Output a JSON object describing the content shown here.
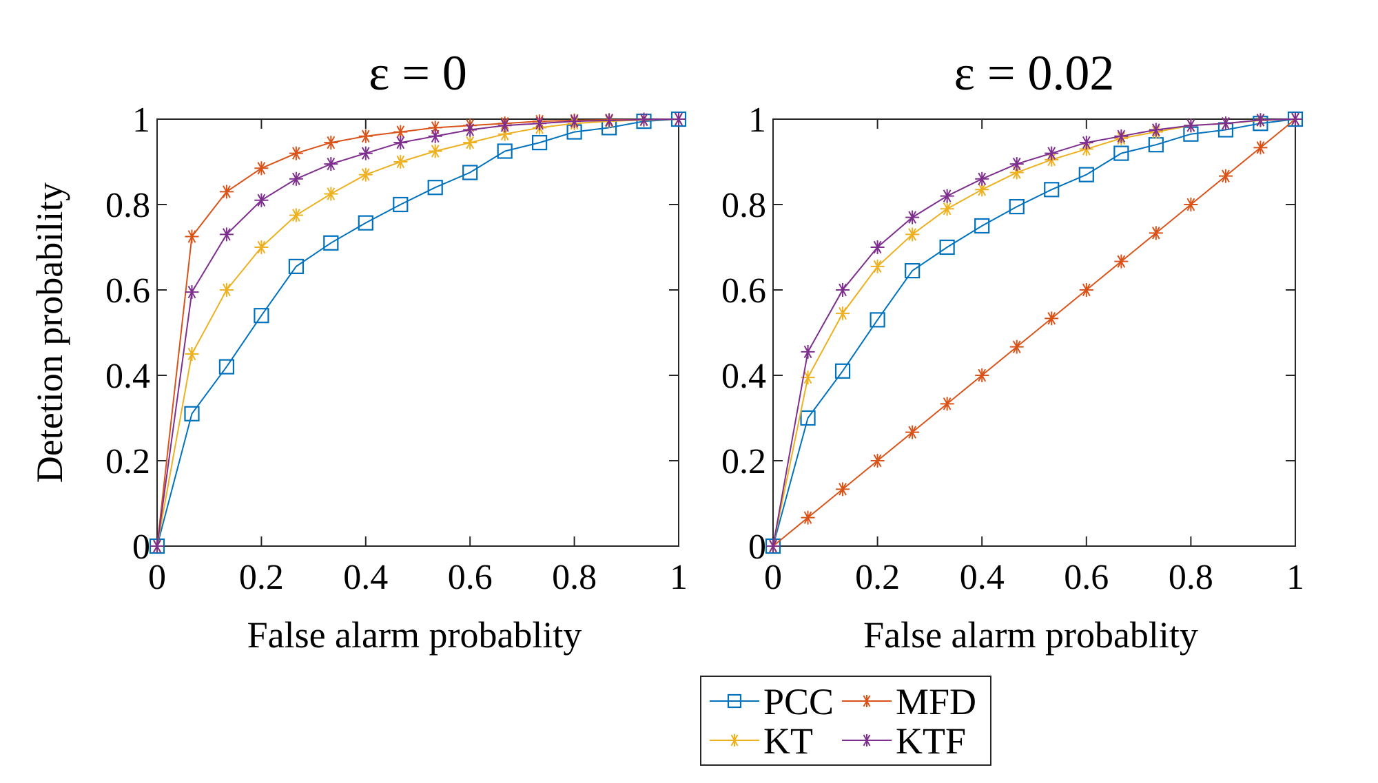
{
  "chart_data": [
    {
      "type": "line",
      "title": "ε = 0",
      "xlabel": "False alarm probablity",
      "ylabel": "Detetion probability",
      "xlim": [
        0,
        1
      ],
      "ylim": [
        0,
        1
      ],
      "xticks": [
        "0",
        "0.2",
        "0.4",
        "0.6",
        "0.8",
        "1"
      ],
      "yticks": [
        "0",
        "0.2",
        "0.4",
        "0.6",
        "0.8",
        "1"
      ],
      "grid": false,
      "x": [
        0,
        0.0667,
        0.1333,
        0.2,
        0.2667,
        0.3333,
        0.4,
        0.4667,
        0.5333,
        0.6,
        0.6667,
        0.7333,
        0.8,
        0.8667,
        0.9333,
        1
      ],
      "series": [
        {
          "name": "PCC",
          "marker": "square",
          "color": "#0072BD",
          "values": [
            0,
            0.31,
            0.42,
            0.54,
            0.655,
            0.71,
            0.757,
            0.8,
            0.84,
            0.875,
            0.925,
            0.945,
            0.97,
            0.98,
            0.995,
            1
          ]
        },
        {
          "name": "MFD",
          "marker": "asterisk",
          "color": "#D95319",
          "values": [
            0,
            0.725,
            0.83,
            0.885,
            0.92,
            0.945,
            0.96,
            0.97,
            0.98,
            0.985,
            0.99,
            0.995,
            0.997,
            0.998,
            0.999,
            1
          ]
        },
        {
          "name": "KT",
          "marker": "asterisk",
          "color": "#EDB120",
          "values": [
            0,
            0.45,
            0.6,
            0.7,
            0.775,
            0.825,
            0.87,
            0.9,
            0.925,
            0.945,
            0.965,
            0.98,
            0.99,
            0.995,
            0.998,
            1
          ]
        },
        {
          "name": "KTF",
          "marker": "asterisk",
          "color": "#7E2F8E",
          "values": [
            0,
            0.595,
            0.73,
            0.81,
            0.86,
            0.895,
            0.92,
            0.945,
            0.96,
            0.975,
            0.985,
            0.99,
            0.995,
            0.997,
            0.999,
            1
          ]
        }
      ]
    },
    {
      "type": "line",
      "title": "ε = 0.02",
      "xlabel": "False alarm probablity",
      "ylabel": "",
      "xlim": [
        0,
        1
      ],
      "ylim": [
        0,
        1
      ],
      "xticks": [
        "0",
        "0.2",
        "0.4",
        "0.6",
        "0.8",
        "1"
      ],
      "yticks": [
        "0",
        "0.2",
        "0.4",
        "0.6",
        "0.8",
        "1"
      ],
      "grid": false,
      "x": [
        0,
        0.0667,
        0.1333,
        0.2,
        0.2667,
        0.3333,
        0.4,
        0.4667,
        0.5333,
        0.6,
        0.6667,
        0.7333,
        0.8,
        0.8667,
        0.9333,
        1
      ],
      "series": [
        {
          "name": "PCC",
          "marker": "square",
          "color": "#0072BD",
          "values": [
            0,
            0.3,
            0.41,
            0.53,
            0.645,
            0.7,
            0.75,
            0.795,
            0.835,
            0.87,
            0.92,
            0.94,
            0.965,
            0.975,
            0.99,
            1
          ]
        },
        {
          "name": "MFD",
          "marker": "asterisk",
          "color": "#D95319",
          "values": [
            0,
            0.0667,
            0.1333,
            0.2,
            0.2667,
            0.3333,
            0.4,
            0.4667,
            0.5333,
            0.6,
            0.6667,
            0.7333,
            0.8,
            0.8667,
            0.9333,
            1
          ]
        },
        {
          "name": "KT",
          "marker": "asterisk",
          "color": "#EDB120",
          "values": [
            0,
            0.395,
            0.545,
            0.655,
            0.73,
            0.79,
            0.835,
            0.875,
            0.905,
            0.93,
            0.955,
            0.97,
            0.985,
            0.99,
            0.997,
            1
          ]
        },
        {
          "name": "KTF",
          "marker": "asterisk",
          "color": "#7E2F8E",
          "values": [
            0,
            0.455,
            0.6,
            0.7,
            0.77,
            0.82,
            0.86,
            0.895,
            0.92,
            0.945,
            0.96,
            0.975,
            0.985,
            0.99,
            0.998,
            1
          ]
        }
      ]
    }
  ],
  "legend": {
    "placement": "bottom-center",
    "entries": [
      "PCC",
      "MFD",
      "KT",
      "KTF"
    ]
  }
}
